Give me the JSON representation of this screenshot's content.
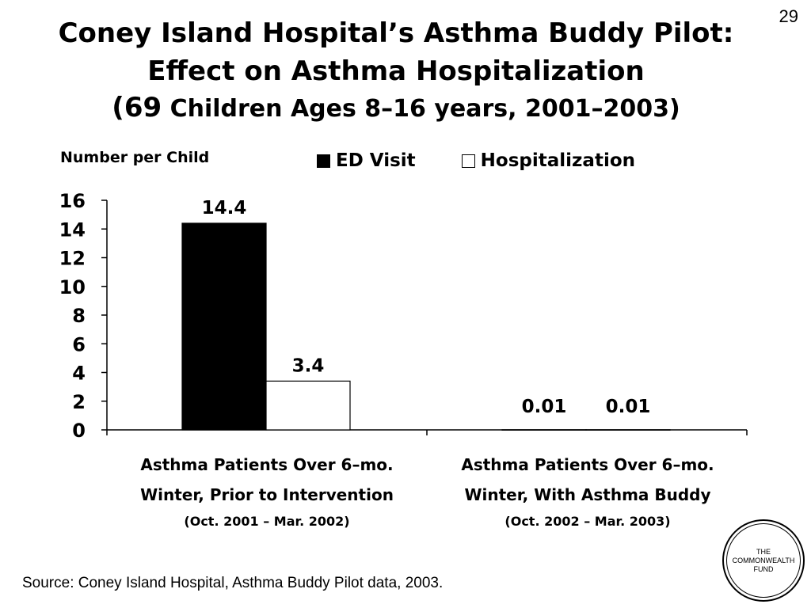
{
  "slide_number": "29",
  "title": {
    "line1": "Coney Island Hospital’s Asthma Buddy Pilot:",
    "line2": "Effect on Asthma Hospitalization",
    "line3_big": "(69",
    "line3_rest": " Children Ages 8–16 years, 2001–2003)"
  },
  "legend": {
    "ed_visit": "ED Visit",
    "hospitalization": "Hospitalization"
  },
  "colors": {
    "ed_visit": "#000000",
    "hospitalization": "#ffffff"
  },
  "category_labels": [
    {
      "line1": "Asthma Patients Over 6–mo.",
      "line2": "Winter, Prior to Intervention",
      "line3": "(Oct. 2001 – Mar. 2002)"
    },
    {
      "line1": "Asthma Patients Over 6–mo.",
      "line2": "Winter, With Asthma Buddy",
      "line3": "(Oct. 2002 – Mar. 2003)"
    }
  ],
  "chart_data": {
    "type": "bar",
    "ylabel": "Number per Child",
    "xlabel": "",
    "ylim": [
      0,
      16
    ],
    "yticks": [
      0,
      2,
      4,
      6,
      8,
      10,
      12,
      14,
      16
    ],
    "series": [
      {
        "name": "ED Visit",
        "values": [
          14.4,
          0.01
        ],
        "labels": [
          "14.4",
          "0.01"
        ]
      },
      {
        "name": "Hospitalization",
        "values": [
          3.4,
          0.01
        ],
        "labels": [
          "3.4",
          "0.01"
        ]
      }
    ],
    "grid": false,
    "legend_position": "top"
  },
  "source": "Source: Coney Island Hospital, Asthma Buddy Pilot data, 2003.",
  "logo": {
    "line1": "THE",
    "line2": "COMMONWEALTH",
    "line3": "FUND"
  }
}
